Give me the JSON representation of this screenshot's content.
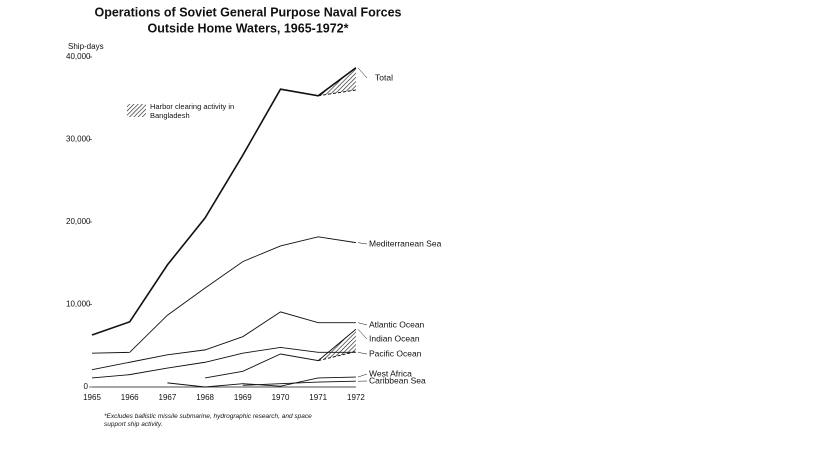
{
  "chart_data": {
    "type": "line",
    "title": "Operations of Soviet General Purpose Naval Forces",
    "subtitle": "Outside Home Waters, 1965-1972*",
    "y_label": "Ship-days",
    "categories": [
      "1965",
      "1966",
      "1967",
      "1968",
      "1969",
      "1970",
      "1971",
      "1972"
    ],
    "ylim": [
      0,
      40000
    ],
    "yticks": [
      0,
      {
        "value": 10000,
        "label": "10,000"
      },
      {
        "value": 20000,
        "label": "20,000"
      },
      {
        "value": 30000,
        "label": "30,000"
      },
      {
        "value": 40000,
        "label": "40,000"
      }
    ],
    "legend": "Harbor clearing activity in Bangladesh",
    "footnote": "*Excludes ballistic missile submarine, hydrographic research, and space support ship activity.",
    "color": "#111111",
    "series": [
      {
        "name": "Total",
        "values": [
          6300,
          7900,
          14800,
          20500,
          28100,
          36100,
          35300,
          38700
        ],
        "dashed_values": [
          null,
          null,
          null,
          null,
          null,
          null,
          35300,
          36000
        ]
      },
      {
        "name": "Mediterranean Sea",
        "values": [
          4100,
          4200,
          8700,
          12000,
          15200,
          17100,
          18200,
          17500
        ]
      },
      {
        "name": "Atlantic Ocean",
        "values": [
          2100,
          3000,
          3900,
          4500,
          6100,
          9100,
          7800,
          7800
        ]
      },
      {
        "name": "Indian Ocean",
        "values": [
          null,
          null,
          null,
          1100,
          1900,
          4000,
          3200,
          7000
        ],
        "dashed_values": [
          null,
          null,
          null,
          null,
          null,
          null,
          3200,
          4300
        ]
      },
      {
        "name": "Pacific Ocean",
        "values": [
          1100,
          1500,
          2300,
          3000,
          4100,
          4800,
          4200,
          4200
        ]
      },
      {
        "name": "West Africa",
        "values": [
          null,
          null,
          500,
          0,
          400,
          100,
          1100,
          1200
        ]
      },
      {
        "name": "Caribbean Sea",
        "values": [
          null,
          null,
          null,
          null,
          200,
          400,
          600,
          700
        ]
      }
    ]
  }
}
